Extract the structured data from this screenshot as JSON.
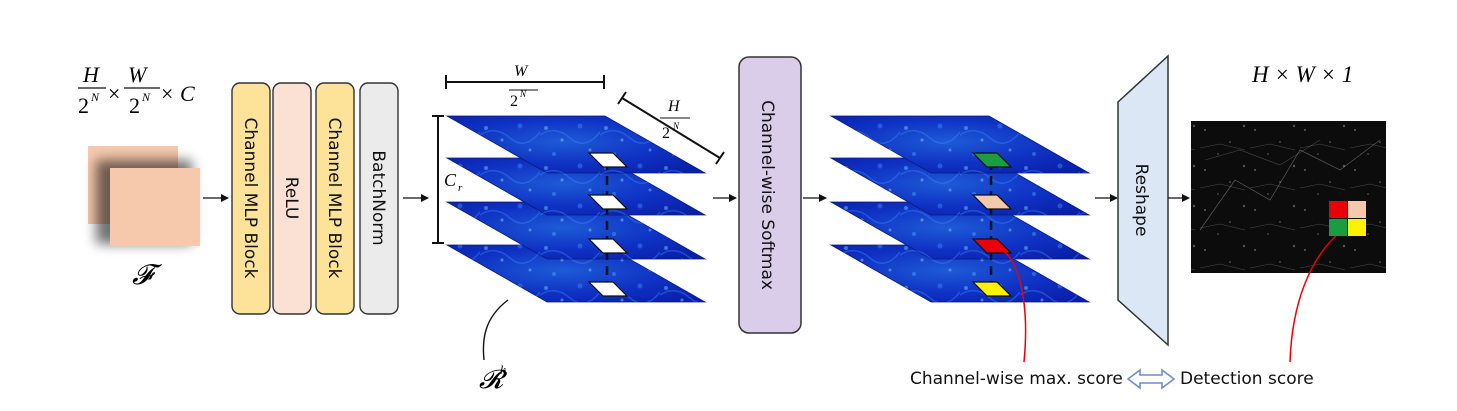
{
  "input_dims": {
    "h": "H",
    "w": "W",
    "times": "×",
    "c": "C",
    "two": "2",
    "n": "N"
  },
  "feature_symbol": "𝓕",
  "blocks": [
    {
      "label": "Channel MLP Block",
      "fill": "#fde39a",
      "stroke": "#333333"
    },
    {
      "label": "ReLU",
      "fill": "#fbe0d4",
      "stroke": "#333333"
    },
    {
      "label": "Channel MLP Block",
      "fill": "#fde39a",
      "stroke": "#333333"
    },
    {
      "label": "BatchNorm",
      "fill": "#ebebeb",
      "stroke": "#333333"
    }
  ],
  "stack_dims": {
    "w_top": "W",
    "h_side": "H",
    "denom": "2",
    "exp": "N",
    "cr_main": "C",
    "cr_sub": "r"
  },
  "response_symbol": {
    "main": "𝓡",
    "sup": "k"
  },
  "softmax_label": "Channel-wise Softmax",
  "reshape_label": "Reshape",
  "output_dims": "H × W × 1",
  "highlight_colors": {
    "green": "#1a9c3f",
    "peach": "#f6c9ad",
    "red": "#e8000b",
    "yellow": "#fff200"
  },
  "legend": {
    "left": "Channel-wise max. score",
    "right": "Detection score"
  }
}
